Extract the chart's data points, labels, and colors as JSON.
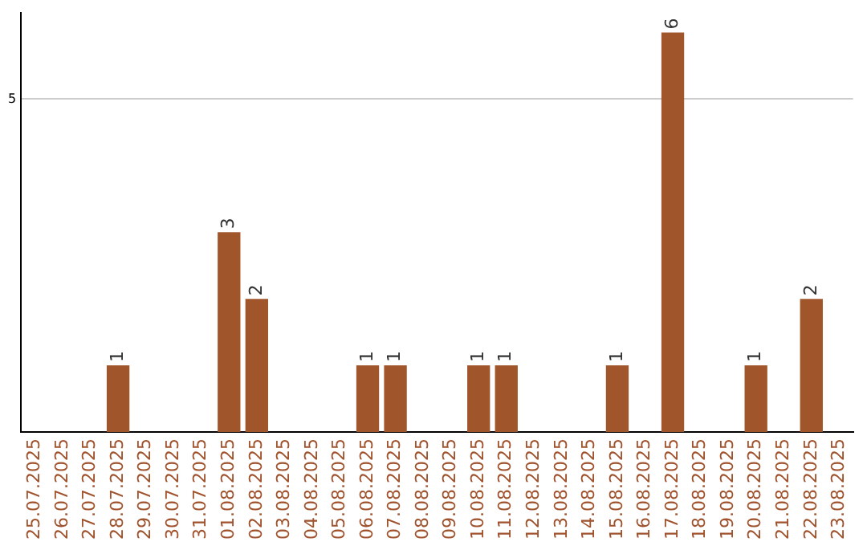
{
  "chart_data": {
    "type": "bar",
    "categories": [
      "25.07.2025",
      "26.07.2025",
      "27.07.2025",
      "28.07.2025",
      "29.07.2025",
      "30.07.2025",
      "31.07.2025",
      "01.08.2025",
      "02.08.2025",
      "03.08.2025",
      "04.08.2025",
      "05.08.2025",
      "06.08.2025",
      "07.08.2025",
      "08.08.2025",
      "09.08.2025",
      "10.08.2025",
      "11.08.2025",
      "12.08.2025",
      "13.08.2025",
      "14.08.2025",
      "15.08.2025",
      "16.08.2025",
      "17.08.2025",
      "18.08.2025",
      "19.08.2025",
      "20.08.2025",
      "21.08.2025",
      "22.08.2025",
      "23.08.2025"
    ],
    "values": [
      null,
      null,
      null,
      1,
      null,
      null,
      null,
      3,
      2,
      null,
      null,
      null,
      1,
      1,
      null,
      null,
      1,
      1,
      null,
      null,
      null,
      1,
      null,
      6,
      null,
      null,
      1,
      null,
      2,
      null
    ],
    "color": "#a0562a",
    "ylim": [
      0,
      6.3
    ],
    "yticks": [
      5
    ],
    "grid": "y",
    "data_labels": true
  }
}
